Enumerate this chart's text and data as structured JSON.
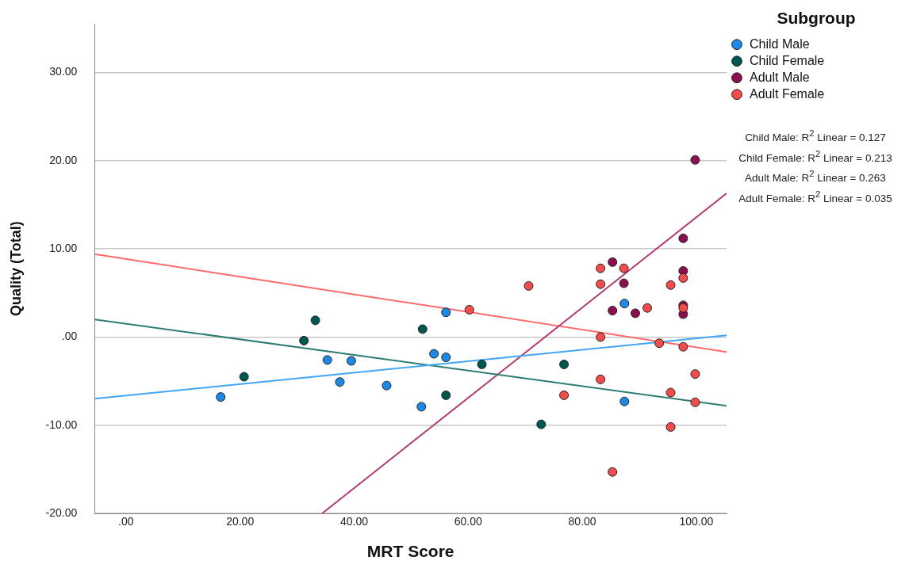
{
  "chart_data": {
    "type": "scatter",
    "xlabel": "MRT Score",
    "ylabel": "Quality (Total)",
    "legend_title": "Subgroup",
    "xlim": [
      -5.5,
      105.3
    ],
    "ylim": [
      -20,
      35.5
    ],
    "xticks": [
      {
        "value": 0,
        "label": ".00"
      },
      {
        "value": 20,
        "label": "20.00"
      },
      {
        "value": 40,
        "label": "40.00"
      },
      {
        "value": 60,
        "label": "60.00"
      },
      {
        "value": 80,
        "label": "80.00"
      },
      {
        "value": 100,
        "label": "100.00"
      }
    ],
    "yticks": [
      {
        "value": -20,
        "label": "-20.00"
      },
      {
        "value": -10,
        "label": "-10.00"
      },
      {
        "value": 0,
        "label": ".00"
      },
      {
        "value": 10,
        "label": "10.00"
      },
      {
        "value": 20,
        "label": "20.00"
      },
      {
        "value": 30,
        "label": "30.00"
      }
    ],
    "grid": "y",
    "legend": "top right",
    "marker": "circle",
    "series": [
      {
        "name": "Child Male",
        "color": "#1e88e5",
        "x": [
          16.6,
          35.3,
          37.5,
          39.5,
          45.7,
          51.8,
          54.0,
          56.1,
          56.1,
          87.4,
          87.4
        ],
        "values": [
          -6.8,
          -2.6,
          -5.1,
          -2.7,
          -5.5,
          -7.9,
          -1.9,
          -2.3,
          2.8,
          3.8,
          -7.3
        ]
      },
      {
        "name": "Child Female",
        "color": "#00574f",
        "x": [
          20.7,
          31.2,
          33.2,
          52.0,
          56.1,
          62.4,
          72.8,
          76.8
        ],
        "values": [
          -4.5,
          -0.4,
          1.9,
          0.9,
          -6.6,
          -3.1,
          -9.9,
          -3.1
        ]
      },
      {
        "name": "Adult Male",
        "color": "#8c1050",
        "x": [
          85.3,
          85.3,
          87.3,
          89.3,
          97.7,
          97.7,
          97.7,
          97.7,
          99.8
        ],
        "values": [
          3.0,
          8.5,
          6.1,
          2.7,
          2.6,
          3.6,
          7.5,
          11.2,
          20.1
        ]
      },
      {
        "name": "Adult Female",
        "color": "#f24c4c",
        "x": [
          60.2,
          70.6,
          76.8,
          83.2,
          83.2,
          83.2,
          83.2,
          85.3,
          87.3,
          91.4,
          93.5,
          95.5,
          95.5,
          95.5,
          97.7,
          97.7,
          97.7,
          99.8,
          99.8
        ],
        "values": [
          3.1,
          5.8,
          -6.6,
          7.8,
          6.0,
          0.0,
          -4.8,
          -15.3,
          7.8,
          3.3,
          -0.7,
          5.9,
          -6.3,
          -10.2,
          6.7,
          3.3,
          -1.1,
          -4.2,
          -7.4
        ]
      },
      {
        "type": "line",
        "marker": "none",
        "color": "#42a5f5",
        "x": [
          -5.5,
          105.3
        ],
        "values": [
          -7.0,
          0.2
        ]
      },
      {
        "type": "line",
        "marker": "none",
        "color": "#2e7d72",
        "x": [
          -5.5,
          105.3
        ],
        "values": [
          2.0,
          -7.8
        ]
      },
      {
        "type": "line",
        "marker": "none",
        "color": "#b03a72",
        "x": [
          34.4,
          105.3
        ],
        "values": [
          -20,
          16.3
        ]
      },
      {
        "type": "line",
        "marker": "none",
        "color": "#ff6b6b",
        "x": [
          -5.5,
          105.3
        ],
        "values": [
          9.4,
          -1.7
        ]
      }
    ],
    "annotations": [
      "Child Male: R$^{2}$ Linear = 0.127",
      "Child Female: R$^{2}$ Linear = 0.213",
      "Adult Male: R$^{2}$ Linear = 0.263",
      "Adult Female: R$^{2}$ Linear = 0.035"
    ]
  }
}
